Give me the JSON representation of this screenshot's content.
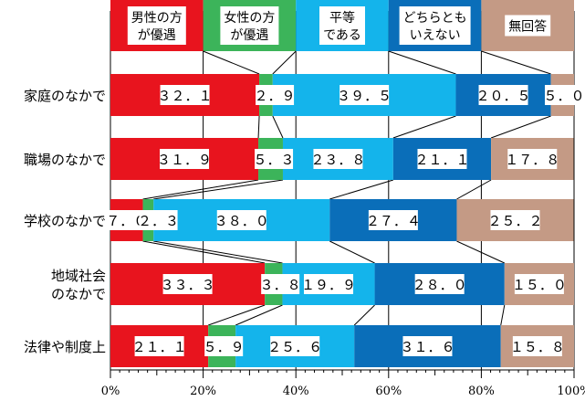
{
  "chart_data": {
    "type": "bar",
    "orientation": "horizontal",
    "stacked": true,
    "categories": [
      "家庭のなかで",
      "職場のなかで",
      "学校のなかで",
      "地域社会\nのなかで",
      "法律や制度上"
    ],
    "series": [
      {
        "name": "男性の方\nが優遇",
        "color": "#e8141e",
        "values": [
          32.1,
          31.9,
          7.0,
          33.3,
          21.1
        ]
      },
      {
        "name": "女性の方\nが優遇",
        "color": "#3cb45a",
        "values": [
          2.9,
          5.3,
          2.3,
          3.8,
          5.9
        ]
      },
      {
        "name": "平等\nである",
        "color": "#14b4eb",
        "values": [
          39.5,
          23.8,
          38.0,
          19.9,
          25.6
        ]
      },
      {
        "name": "どちらとも\nいえない",
        "color": "#0a6eb9",
        "values": [
          20.5,
          21.1,
          27.4,
          28.0,
          31.6
        ]
      },
      {
        "name": "無回答",
        "color": "#c49a85",
        "values": [
          5.0,
          17.8,
          25.2,
          15.0,
          15.8
        ]
      }
    ],
    "x_ticks": [
      "0%",
      "20%",
      "40%",
      "60%",
      "80%",
      "100%"
    ],
    "xlim": [
      0,
      100
    ],
    "grid": true,
    "legend_position": "top",
    "show_connector_lines": true,
    "value_format": "fullwidth-decimal"
  }
}
